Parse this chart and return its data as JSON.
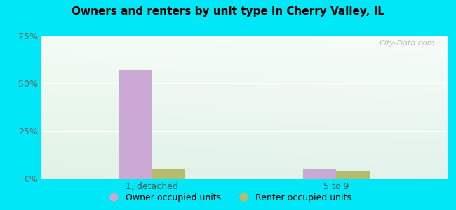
{
  "title": "Owners and renters by unit type in Cherry Valley, IL",
  "categories": [
    "1, detached",
    "5 to 9"
  ],
  "owner_values": [
    57.0,
    5.0
  ],
  "renter_values": [
    5.0,
    4.0
  ],
  "owner_color": "#c9a8d4",
  "renter_color": "#b5bc6e",
  "ylim": [
    0,
    75
  ],
  "yticks": [
    0,
    25,
    50,
    75
  ],
  "yticklabels": [
    "0%",
    "25%",
    "50%",
    "75%"
  ],
  "legend_owner": "Owner occupied units",
  "legend_renter": "Renter occupied units",
  "bg_outer": "#00e8f8",
  "watermark": "City-Data.com",
  "bar_width": 0.45,
  "group_positions": [
    1.5,
    4.0
  ],
  "xlim": [
    0,
    5.5
  ]
}
